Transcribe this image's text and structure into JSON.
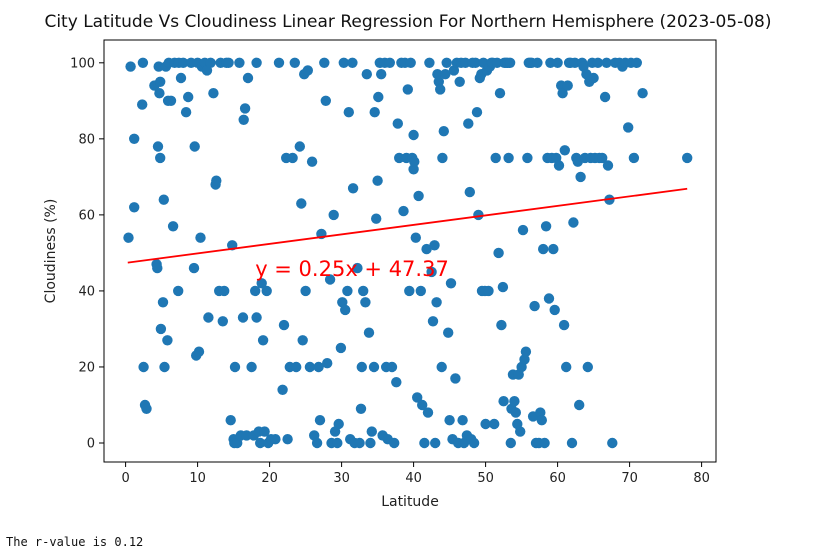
{
  "chart_data": {
    "type": "scatter",
    "title": "City Latitude Vs Cloudiness Linear Regression For Northern Hemisphere (2023-05-08)",
    "xlabel": "Latitude",
    "ylabel": "Cloudiness (%)",
    "xlim": [
      -3,
      82
    ],
    "ylim": [
      -5,
      106
    ],
    "xticks": [
      0,
      10,
      20,
      30,
      40,
      50,
      60,
      70,
      80
    ],
    "yticks": [
      0,
      20,
      40,
      60,
      80,
      100
    ],
    "grid": false,
    "point_color": "#1f77b4",
    "regression": {
      "slope": 0.25,
      "intercept": 47.37,
      "x_range": [
        0.3,
        78
      ],
      "color": "#ff0000",
      "equation_label": "y = 0.25x + 47.37",
      "label_at": [
        18,
        46
      ]
    },
    "points": [
      [
        0.4,
        54
      ],
      [
        0.7,
        99
      ],
      [
        1.2,
        80
      ],
      [
        1.2,
        62
      ],
      [
        2.3,
        89
      ],
      [
        2.4,
        100
      ],
      [
        2.5,
        20
      ],
      [
        2.7,
        10
      ],
      [
        2.9,
        9
      ],
      [
        4,
        94
      ],
      [
        4.3,
        47
      ],
      [
        4.4,
        46
      ],
      [
        4.5,
        78
      ],
      [
        4.6,
        99
      ],
      [
        4.7,
        92
      ],
      [
        4.8,
        75
      ],
      [
        4.8,
        95
      ],
      [
        4.9,
        30
      ],
      [
        5.2,
        37
      ],
      [
        5.3,
        64
      ],
      [
        5.4,
        20
      ],
      [
        5.6,
        99
      ],
      [
        5.8,
        27
      ],
      [
        5.9,
        90
      ],
      [
        6,
        100
      ],
      [
        6.3,
        90
      ],
      [
        6.6,
        57
      ],
      [
        6.8,
        100
      ],
      [
        7.3,
        40
      ],
      [
        7.4,
        100
      ],
      [
        7.7,
        96
      ],
      [
        8,
        100
      ],
      [
        8.4,
        87
      ],
      [
        8.7,
        91
      ],
      [
        9.1,
        100
      ],
      [
        9.5,
        46
      ],
      [
        9.6,
        78
      ],
      [
        9.8,
        23
      ],
      [
        10,
        100
      ],
      [
        10.2,
        24
      ],
      [
        10.4,
        54
      ],
      [
        10.6,
        99
      ],
      [
        11,
        100
      ],
      [
        11.3,
        98
      ],
      [
        11.5,
        33
      ],
      [
        11.8,
        100
      ],
      [
        12.2,
        92
      ],
      [
        12.5,
        68
      ],
      [
        12.6,
        69
      ],
      [
        13,
        40
      ],
      [
        13.2,
        100
      ],
      [
        13.5,
        32
      ],
      [
        13.7,
        40
      ],
      [
        14,
        100
      ],
      [
        14.3,
        100
      ],
      [
        14.6,
        6
      ],
      [
        14.8,
        52
      ],
      [
        15,
        1
      ],
      [
        15.1,
        0
      ],
      [
        15.2,
        20
      ],
      [
        15.5,
        0
      ],
      [
        15.8,
        100
      ],
      [
        16,
        2
      ],
      [
        16.3,
        33
      ],
      [
        16.4,
        85
      ],
      [
        16.6,
        88
      ],
      [
        16.8,
        2
      ],
      [
        17,
        96
      ],
      [
        17.5,
        20
      ],
      [
        17.8,
        2
      ],
      [
        18,
        40
      ],
      [
        18.2,
        100
      ],
      [
        18.2,
        33
      ],
      [
        18.5,
        3
      ],
      [
        18.7,
        0
      ],
      [
        18.9,
        42
      ],
      [
        19.1,
        27
      ],
      [
        19.3,
        3
      ],
      [
        19.6,
        40
      ],
      [
        19.8,
        0
      ],
      [
        20.2,
        1
      ],
      [
        20.8,
        1
      ],
      [
        21.3,
        100
      ],
      [
        21.8,
        14
      ],
      [
        22,
        31
      ],
      [
        22.3,
        75
      ],
      [
        22.5,
        1
      ],
      [
        22.8,
        20
      ],
      [
        23.2,
        75
      ],
      [
        23.5,
        100
      ],
      [
        23.7,
        20
      ],
      [
        24.2,
        78
      ],
      [
        24.4,
        63
      ],
      [
        24.6,
        27
      ],
      [
        24.8,
        97
      ],
      [
        25,
        40
      ],
      [
        25.3,
        98
      ],
      [
        25.6,
        20
      ],
      [
        25.9,
        74
      ],
      [
        26.2,
        2
      ],
      [
        26.6,
        0
      ],
      [
        26.8,
        20
      ],
      [
        27,
        6
      ],
      [
        27.2,
        55
      ],
      [
        27.6,
        100
      ],
      [
        27.8,
        90
      ],
      [
        28,
        21
      ],
      [
        28.4,
        43
      ],
      [
        28.6,
        0
      ],
      [
        28.9,
        60
      ],
      [
        29.1,
        3
      ],
      [
        29.4,
        0
      ],
      [
        29.6,
        5
      ],
      [
        29.9,
        25
      ],
      [
        30.1,
        37
      ],
      [
        30.3,
        100
      ],
      [
        30.5,
        35
      ],
      [
        30.8,
        40
      ],
      [
        31,
        87
      ],
      [
        31.2,
        1
      ],
      [
        31.5,
        100
      ],
      [
        31.6,
        67
      ],
      [
        31.8,
        0
      ],
      [
        32.2,
        46
      ],
      [
        32.5,
        0
      ],
      [
        32.7,
        9
      ],
      [
        32.8,
        20
      ],
      [
        33,
        40
      ],
      [
        33.3,
        37
      ],
      [
        33.5,
        97
      ],
      [
        33.8,
        29
      ],
      [
        34,
        0
      ],
      [
        34.2,
        3
      ],
      [
        34.5,
        20
      ],
      [
        34.6,
        87
      ],
      [
        34.8,
        59
      ],
      [
        35,
        69
      ],
      [
        35.1,
        91
      ],
      [
        35.3,
        100
      ],
      [
        35.5,
        97
      ],
      [
        35.7,
        2
      ],
      [
        36,
        100
      ],
      [
        36.2,
        20
      ],
      [
        36.4,
        1
      ],
      [
        36.7,
        100
      ],
      [
        37,
        20
      ],
      [
        37.3,
        0
      ],
      [
        37.6,
        16
      ],
      [
        37.8,
        84
      ],
      [
        38,
        75
      ],
      [
        38.3,
        100
      ],
      [
        38.6,
        61
      ],
      [
        38.8,
        100
      ],
      [
        39,
        75
      ],
      [
        39.2,
        93
      ],
      [
        39.4,
        40
      ],
      [
        39.6,
        100
      ],
      [
        39.8,
        75
      ],
      [
        40,
        81
      ],
      [
        40,
        72
      ],
      [
        40.1,
        74
      ],
      [
        40.3,
        54
      ],
      [
        40.5,
        12
      ],
      [
        40.7,
        65
      ],
      [
        41,
        40
      ],
      [
        41.2,
        10
      ],
      [
        41.5,
        0
      ],
      [
        41.8,
        51
      ],
      [
        42,
        8
      ],
      [
        42.2,
        100
      ],
      [
        42.5,
        45
      ],
      [
        42.7,
        32
      ],
      [
        42.9,
        52
      ],
      [
        43,
        0
      ],
      [
        43.2,
        37
      ],
      [
        43.3,
        97
      ],
      [
        43.5,
        95
      ],
      [
        43.7,
        93
      ],
      [
        43.9,
        20
      ],
      [
        44,
        75
      ],
      [
        44.2,
        82
      ],
      [
        44.4,
        97
      ],
      [
        44.6,
        100
      ],
      [
        44.8,
        29
      ],
      [
        45,
        6
      ],
      [
        45.2,
        42
      ],
      [
        45.4,
        1
      ],
      [
        45.6,
        98
      ],
      [
        45.8,
        17
      ],
      [
        46,
        100
      ],
      [
        46.2,
        0
      ],
      [
        46.4,
        95
      ],
      [
        46.6,
        100
      ],
      [
        46.8,
        6
      ],
      [
        47,
        0
      ],
      [
        47.2,
        100
      ],
      [
        47.4,
        2
      ],
      [
        47.6,
        84
      ],
      [
        47.8,
        66
      ],
      [
        48,
        1
      ],
      [
        48.2,
        100
      ],
      [
        48.4,
        0
      ],
      [
        48.6,
        100
      ],
      [
        48.8,
        87
      ],
      [
        49,
        60
      ],
      [
        49.2,
        96
      ],
      [
        49.4,
        97
      ],
      [
        49.5,
        40
      ],
      [
        49.7,
        100
      ],
      [
        49.9,
        40
      ],
      [
        50,
        5
      ],
      [
        50.2,
        98
      ],
      [
        50.4,
        40
      ],
      [
        50.6,
        99
      ],
      [
        50.8,
        100
      ],
      [
        51,
        100
      ],
      [
        51.2,
        5
      ],
      [
        51.4,
        75
      ],
      [
        51.6,
        100
      ],
      [
        51.8,
        50
      ],
      [
        52,
        92
      ],
      [
        52.2,
        31
      ],
      [
        52.4,
        41
      ],
      [
        52.5,
        11
      ],
      [
        52.6,
        100
      ],
      [
        52.8,
        100
      ],
      [
        53,
        100
      ],
      [
        53.2,
        75
      ],
      [
        53.4,
        100
      ],
      [
        53.5,
        0
      ],
      [
        53.6,
        9
      ],
      [
        53.8,
        18
      ],
      [
        54,
        11
      ],
      [
        54.2,
        8
      ],
      [
        54.4,
        5
      ],
      [
        54.6,
        18
      ],
      [
        54.8,
        3
      ],
      [
        55,
        20
      ],
      [
        55.2,
        56
      ],
      [
        55.4,
        22
      ],
      [
        55.6,
        24
      ],
      [
        55.8,
        75
      ],
      [
        56,
        100
      ],
      [
        56.2,
        100
      ],
      [
        56.4,
        100
      ],
      [
        56.6,
        7
      ],
      [
        56.8,
        36
      ],
      [
        57,
        0
      ],
      [
        57.2,
        100
      ],
      [
        57.4,
        0
      ],
      [
        57.6,
        8
      ],
      [
        57.8,
        6
      ],
      [
        58,
        51
      ],
      [
        58.2,
        0
      ],
      [
        58.4,
        57
      ],
      [
        58.6,
        75
      ],
      [
        58.8,
        38
      ],
      [
        59,
        100
      ],
      [
        59.2,
        75
      ],
      [
        59.4,
        51
      ],
      [
        59.6,
        35
      ],
      [
        59.8,
        75
      ],
      [
        60,
        100
      ],
      [
        60.2,
        73
      ],
      [
        60.5,
        94
      ],
      [
        60.7,
        92
      ],
      [
        60.9,
        31
      ],
      [
        61,
        77
      ],
      [
        61.2,
        20
      ],
      [
        61.4,
        94
      ],
      [
        61.6,
        100
      ],
      [
        61.8,
        100
      ],
      [
        62,
        0
      ],
      [
        62.2,
        58
      ],
      [
        62.4,
        100
      ],
      [
        62.6,
        75
      ],
      [
        62.8,
        74
      ],
      [
        63,
        10
      ],
      [
        63.2,
        70
      ],
      [
        63.4,
        100
      ],
      [
        63.6,
        99
      ],
      [
        63.8,
        75
      ],
      [
        64,
        97
      ],
      [
        64.2,
        20
      ],
      [
        64.4,
        95
      ],
      [
        64.6,
        75
      ],
      [
        64.8,
        100
      ],
      [
        65,
        96
      ],
      [
        65.2,
        75
      ],
      [
        65.6,
        100
      ],
      [
        65.8,
        75
      ],
      [
        66.2,
        75
      ],
      [
        66.6,
        91
      ],
      [
        66.8,
        100
      ],
      [
        67,
        73
      ],
      [
        67.2,
        64
      ],
      [
        67.6,
        0
      ],
      [
        68,
        100
      ],
      [
        68.6,
        100
      ],
      [
        69,
        99
      ],
      [
        69.4,
        100
      ],
      [
        69.8,
        83
      ],
      [
        70.2,
        100
      ],
      [
        70.6,
        75
      ],
      [
        71,
        100
      ],
      [
        71.8,
        92
      ],
      [
        78,
        75
      ]
    ]
  },
  "output": {
    "r_value_text": "The r-value is 0.12"
  }
}
